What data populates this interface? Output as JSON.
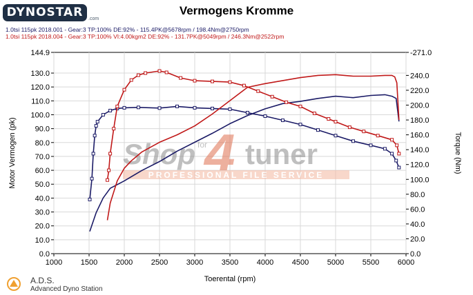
{
  "header": {
    "logo_text": "DYNOSTAR",
    "logo_sub": ".com",
    "title": "Vermogens Kromme",
    "runs": [
      {
        "text": "1.0tsi 115pk 2018.001 - Gear:3 TP:100% DE:92% - 115.4PK@5678rpm / 198.4Nm@2750rpm",
        "color": "#1a1a66"
      },
      {
        "text": "1.0tsi 115pk 2018.004 - Gear:3 TP:100% VI:4.00kgm2 DE:92% - 131.7PK@5049rpm / 246.3Nm@2522rpm",
        "color": "#c01818"
      }
    ]
  },
  "footer": {
    "brand": "A.D.S.",
    "brand_sub": "Advanced Dyno Station"
  },
  "watermark": {
    "word_left": "Shop",
    "word_small": "for",
    "digit": "4",
    "word_right": "tuner",
    "tagline": "PROFESSIONAL FILE SERVICE"
  },
  "colors": {
    "blue": "#1a1a66",
    "red": "#c01818",
    "plot_bg": "#ffffff",
    "grid": "#d8d8d8"
  },
  "chart_data": {
    "type": "line",
    "title": "Vermogens Kromme",
    "xlabel": "Toerental (rpm)",
    "ylabel": "Motor Vermogen (pk)",
    "y2label": "Torque (Nm)",
    "xlim": [
      1000,
      6000
    ],
    "ylim": [
      0,
      144.9
    ],
    "y2lim": [
      0,
      271.0
    ],
    "x_ticks": [
      1000,
      1500,
      2000,
      2500,
      3000,
      3500,
      4000,
      4500,
      5000,
      5500,
      6000
    ],
    "y_ticks": [
      "0.0",
      "10.0",
      "20.0",
      "30.0",
      "40.0",
      "50.0",
      "60.0",
      "70.0",
      "80.0",
      "90.0",
      "100.0",
      "110.0",
      "120.0",
      "130.0",
      "144.9"
    ],
    "y_tick_values": [
      0,
      10,
      20,
      30,
      40,
      50,
      60,
      70,
      80,
      90,
      100,
      110,
      120,
      130,
      144.9
    ],
    "y2_ticks": [
      "0.0",
      "20.0",
      "40.0",
      "60.0",
      "80.0",
      "100.0",
      "120.0",
      "140.0",
      "160.0",
      "180.0",
      "200.0",
      "220.0",
      "240.0",
      "-271.0"
    ],
    "y2_tick_values": [
      0,
      20,
      40,
      60,
      80,
      100,
      120,
      140,
      160,
      180,
      200,
      220,
      240,
      271
    ],
    "grid": true,
    "series": [
      {
        "axis": "left",
        "color": "#1a1a66",
        "markers": true,
        "points": [
          [
            1510,
            39
          ],
          [
            1540,
            54
          ],
          [
            1560,
            72
          ],
          [
            1580,
            85
          ],
          [
            1600,
            92
          ],
          [
            1620,
            95
          ],
          [
            1700,
            100
          ],
          [
            1800,
            103
          ],
          [
            1900,
            104.5
          ],
          [
            2000,
            105
          ],
          [
            2200,
            105.3
          ],
          [
            2500,
            104.8
          ],
          [
            2750,
            106
          ],
          [
            3000,
            105
          ],
          [
            3250,
            104.5
          ],
          [
            3500,
            104
          ],
          [
            3750,
            101.5
          ],
          [
            4000,
            99
          ],
          [
            4250,
            96
          ],
          [
            4500,
            93
          ],
          [
            4750,
            89
          ],
          [
            5000,
            85
          ],
          [
            5250,
            81
          ],
          [
            5500,
            78
          ],
          [
            5700,
            75.5
          ],
          [
            5800,
            72
          ],
          [
            5860,
            67
          ],
          [
            5900,
            62
          ]
        ]
      },
      {
        "axis": "right",
        "color": "#1a1a66",
        "markers": false,
        "points": [
          [
            1510,
            30
          ],
          [
            1600,
            55
          ],
          [
            1700,
            75
          ],
          [
            1800,
            88
          ],
          [
            2000,
            98
          ],
          [
            2250,
            112
          ],
          [
            2500,
            124
          ],
          [
            2750,
            138
          ],
          [
            3000,
            150
          ],
          [
            3250,
            162
          ],
          [
            3500,
            175
          ],
          [
            3750,
            186
          ],
          [
            4000,
            195
          ],
          [
            4250,
            202
          ],
          [
            4500,
            205
          ],
          [
            4750,
            209
          ],
          [
            5000,
            212
          ],
          [
            5250,
            210
          ],
          [
            5500,
            213
          ],
          [
            5700,
            214
          ],
          [
            5800,
            212
          ],
          [
            5860,
            209
          ],
          [
            5900,
            178
          ]
        ]
      },
      {
        "axis": "left",
        "color": "#c01818",
        "markers": true,
        "points": [
          [
            1760,
            53
          ],
          [
            1780,
            60
          ],
          [
            1800,
            72
          ],
          [
            1850,
            90
          ],
          [
            1900,
            106
          ],
          [
            2000,
            118
          ],
          [
            2100,
            125
          ],
          [
            2200,
            128.5
          ],
          [
            2300,
            130
          ],
          [
            2500,
            131.5
          ],
          [
            2600,
            130.5
          ],
          [
            2800,
            126.5
          ],
          [
            3000,
            124.5
          ],
          [
            3250,
            124
          ],
          [
            3500,
            123.5
          ],
          [
            3700,
            121
          ],
          [
            3900,
            117
          ],
          [
            4100,
            113
          ],
          [
            4300,
            109
          ],
          [
            4500,
            106
          ],
          [
            4700,
            101
          ],
          [
            4900,
            97
          ],
          [
            5000,
            95
          ],
          [
            5200,
            91
          ],
          [
            5400,
            88
          ],
          [
            5600,
            85
          ],
          [
            5800,
            82
          ],
          [
            5870,
            78
          ],
          [
            5900,
            72
          ]
        ]
      },
      {
        "axis": "right",
        "color": "#c01818",
        "markers": false,
        "points": [
          [
            1760,
            45
          ],
          [
            1800,
            68
          ],
          [
            1900,
            98
          ],
          [
            2000,
            115
          ],
          [
            2100,
            125
          ],
          [
            2250,
            137
          ],
          [
            2500,
            150
          ],
          [
            2750,
            160
          ],
          [
            3000,
            172
          ],
          [
            3250,
            188
          ],
          [
            3500,
            206
          ],
          [
            3750,
            224
          ],
          [
            4000,
            229
          ],
          [
            4250,
            233
          ],
          [
            4500,
            237
          ],
          [
            4750,
            240
          ],
          [
            5000,
            241
          ],
          [
            5250,
            239
          ],
          [
            5500,
            239
          ],
          [
            5700,
            240
          ],
          [
            5800,
            240
          ],
          [
            5840,
            238
          ],
          [
            5870,
            230
          ],
          [
            5900,
            180
          ]
        ]
      }
    ]
  }
}
